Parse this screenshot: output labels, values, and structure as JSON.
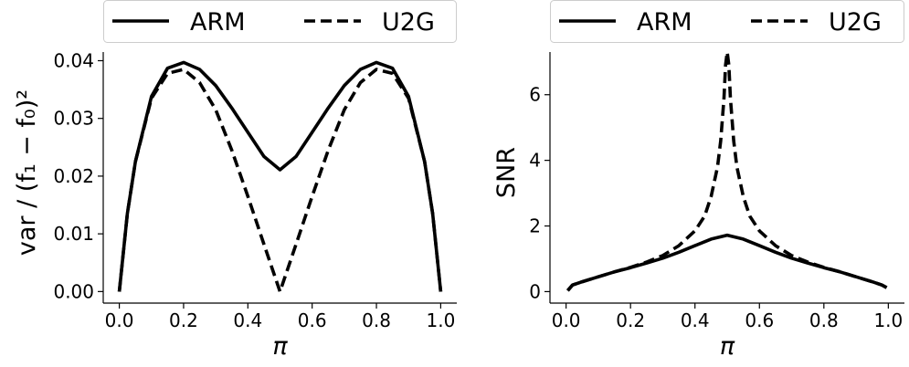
{
  "chart_data": [
    {
      "type": "line",
      "xlabel": "π",
      "ylabel": "var / (f₁ − f₀)²",
      "xlim": [
        -0.05,
        1.05
      ],
      "ylim": [
        -0.002,
        0.0415
      ],
      "xticks": [
        "0.0",
        "0.2",
        "0.4",
        "0.6",
        "0.8",
        "1.0"
      ],
      "xtick_values": [
        0.0,
        0.2,
        0.4,
        0.6,
        0.8,
        1.0
      ],
      "yticks": [
        "0.00",
        "0.01",
        "0.02",
        "0.03",
        "0.04"
      ],
      "ytick_values": [
        0.0,
        0.01,
        0.02,
        0.03,
        0.04
      ],
      "legend": {
        "placement": "top-center-outside",
        "entries": [
          "ARM",
          "U2G"
        ]
      },
      "grid": false,
      "series": [
        {
          "name": "ARM",
          "style": "solid",
          "x": [
            0.0,
            0.025,
            0.05,
            0.1,
            0.15,
            0.2,
            0.25,
            0.3,
            0.35,
            0.4,
            0.45,
            0.5,
            0.55,
            0.6,
            0.65,
            0.7,
            0.75,
            0.8,
            0.85,
            0.9,
            0.95,
            0.975,
            1.0
          ],
          "y": [
            0.0,
            0.0135,
            0.0225,
            0.0338,
            0.0387,
            0.0397,
            0.0385,
            0.0357,
            0.0318,
            0.0276,
            0.0234,
            0.0211,
            0.0234,
            0.0276,
            0.0318,
            0.0357,
            0.0385,
            0.0397,
            0.0387,
            0.0338,
            0.0225,
            0.0135,
            0.0
          ]
        },
        {
          "name": "U2G",
          "style": "dashed",
          "x": [
            0.0,
            0.025,
            0.05,
            0.1,
            0.15,
            0.2,
            0.25,
            0.3,
            0.35,
            0.4,
            0.45,
            0.5,
            0.55,
            0.6,
            0.65,
            0.7,
            0.75,
            0.8,
            0.85,
            0.9,
            0.95,
            0.975,
            1.0
          ],
          "y": [
            0.0,
            0.0135,
            0.0225,
            0.0335,
            0.0378,
            0.0385,
            0.0362,
            0.0315,
            0.0245,
            0.0165,
            0.0082,
            0.0,
            0.0082,
            0.0165,
            0.0245,
            0.0315,
            0.0362,
            0.0385,
            0.0378,
            0.0335,
            0.0225,
            0.0135,
            0.0
          ]
        }
      ]
    },
    {
      "type": "line",
      "xlabel": "π",
      "ylabel": "SNR",
      "xlim": [
        -0.05,
        1.05
      ],
      "ylim": [
        -0.35,
        7.3
      ],
      "xticks": [
        "0.0",
        "0.2",
        "0.4",
        "0.6",
        "0.8",
        "1.0"
      ],
      "xtick_values": [
        0.0,
        0.2,
        0.4,
        0.6,
        0.8,
        1.0
      ],
      "yticks": [
        "0",
        "2",
        "4",
        "6"
      ],
      "ytick_values": [
        0,
        2,
        4,
        6
      ],
      "legend": {
        "placement": "top-center-outside",
        "entries": [
          "ARM",
          "U2G"
        ]
      },
      "grid": false,
      "series": [
        {
          "name": "ARM",
          "style": "solid",
          "x": [
            0.005,
            0.02,
            0.05,
            0.1,
            0.15,
            0.2,
            0.25,
            0.3,
            0.35,
            0.4,
            0.45,
            0.5,
            0.55,
            0.6,
            0.65,
            0.7,
            0.75,
            0.8,
            0.85,
            0.9,
            0.95,
            0.98,
            0.995
          ],
          "y": [
            0.03,
            0.2,
            0.3,
            0.45,
            0.6,
            0.73,
            0.87,
            1.02,
            1.2,
            1.4,
            1.6,
            1.72,
            1.6,
            1.4,
            1.2,
            1.02,
            0.87,
            0.73,
            0.6,
            0.45,
            0.3,
            0.2,
            0.12
          ]
        },
        {
          "name": "U2G",
          "style": "dashed",
          "x": [
            0.005,
            0.02,
            0.05,
            0.1,
            0.15,
            0.2,
            0.25,
            0.3,
            0.35,
            0.4,
            0.43,
            0.45,
            0.47,
            0.48,
            0.49,
            0.495,
            0.5,
            0.505,
            0.51,
            0.52,
            0.53,
            0.55,
            0.57,
            0.6,
            0.65,
            0.7,
            0.75,
            0.8,
            0.85,
            0.9,
            0.95,
            0.98,
            0.995
          ],
          "y": [
            0.03,
            0.2,
            0.3,
            0.45,
            0.6,
            0.74,
            0.9,
            1.1,
            1.4,
            1.85,
            2.3,
            2.9,
            3.8,
            4.6,
            5.9,
            6.9,
            7.3,
            6.9,
            5.9,
            4.6,
            3.8,
            2.9,
            2.3,
            1.85,
            1.4,
            1.1,
            0.9,
            0.74,
            0.6,
            0.45,
            0.3,
            0.2,
            0.12
          ]
        }
      ]
    }
  ]
}
